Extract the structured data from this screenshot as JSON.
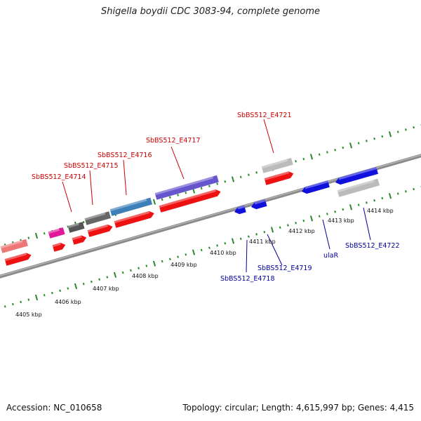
{
  "title": "Shigella boydii CDC 3083-94, complete genome",
  "footer": {
    "accession": "Accession: NC_010658",
    "summary": "Topology: circular; Length: 4,615,997 bp; Genes: 4,415"
  },
  "colors": {
    "forward_label": "#cc0000",
    "reverse_label": "#000099",
    "backbone": "#777777",
    "tick": "#2a8a2a",
    "cds_forward": "#ee1111",
    "cds_reverse": "#1111dd",
    "pseudo": "#bbbbbb"
  },
  "kbp_ticks": [
    "4405 kbp",
    "4406 kbp",
    "4407 kbp",
    "4408 kbp",
    "4409 kbp",
    "4410 kbp",
    "4411 kbp",
    "4412 kbp",
    "4413 kbp",
    "4414 kbp"
  ],
  "gene_labels": {
    "forward": [
      "SbBS512_E4714",
      "SbBS512_E4715",
      "SbBS512_E4716",
      "SbBS512_E4717",
      "SbBS512_E4721"
    ],
    "reverse": [
      "SbBS512_E4718",
      "SbBS512_E4719",
      "ulaR",
      "SbBS512_E4722"
    ]
  }
}
